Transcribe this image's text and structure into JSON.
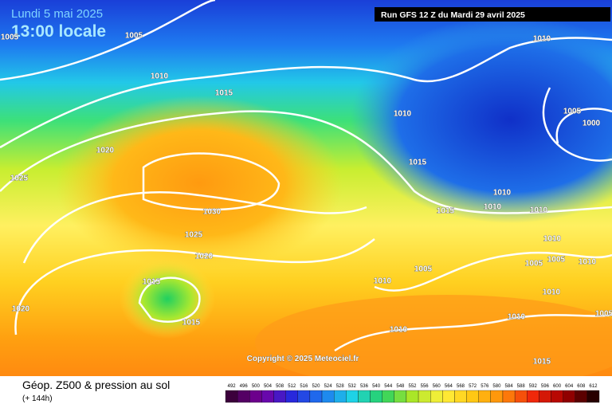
{
  "header": {
    "date": "Lundi 5 mai 2025",
    "time": "13:00 locale",
    "run": "Run GFS 12 Z du Mardi 29 avril 2025"
  },
  "copyright": "Copyright © 2025 Meteociel.fr",
  "footer": {
    "title": "Géop. Z500 & pression au sol",
    "lead": "(+ 144h)"
  },
  "isobar_labels": [
    1005,
    1005,
    1010,
    1015,
    1010,
    1020,
    1025,
    1015,
    1030,
    1025,
    1020,
    1015,
    1015,
    1020,
    1010,
    1005,
    1010,
    1015,
    1010,
    1005,
    1000,
    1010,
    1010,
    1015,
    1010,
    1010,
    1005,
    1005,
    1010,
    1010,
    1010,
    1005
  ],
  "scale": [
    492,
    496,
    500,
    504,
    508,
    512,
    516,
    520,
    524,
    528,
    532,
    536,
    540,
    544,
    548,
    552,
    556,
    560,
    564,
    568,
    572,
    576,
    580,
    584,
    588,
    592,
    596,
    600,
    604,
    608,
    612
  ]
}
